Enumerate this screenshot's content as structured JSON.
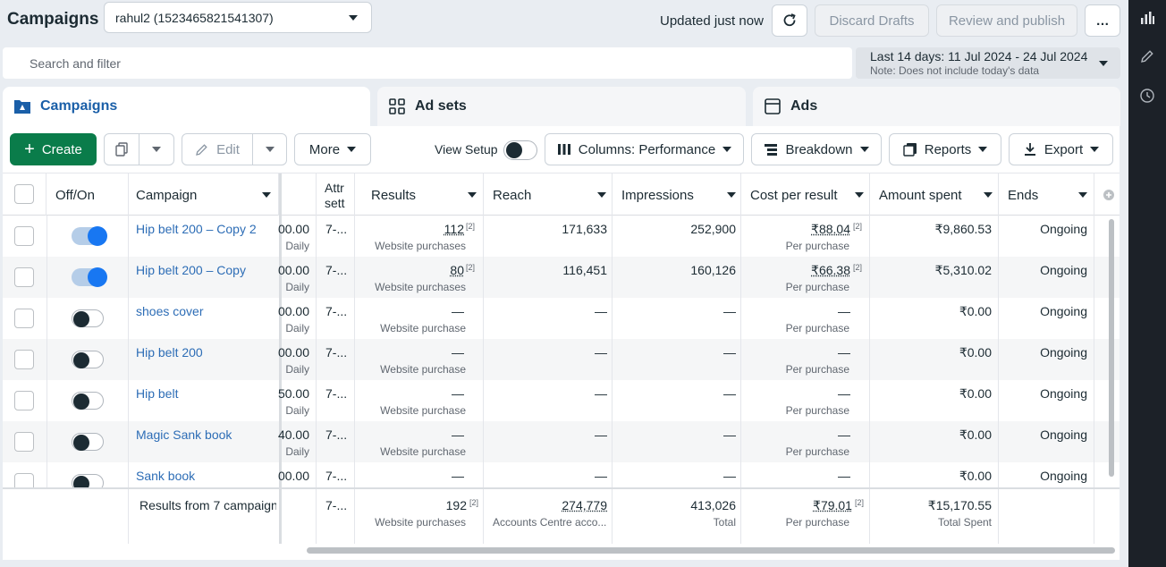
{
  "header": {
    "title": "Campaigns",
    "account": "rahul2 (1523465821541307)",
    "updated": "Updated just now",
    "discard": "Discard Drafts",
    "review": "Review and publish",
    "more_icon": "…"
  },
  "search": {
    "placeholder": "Search and filter"
  },
  "date": {
    "range": "Last 14 days: 11 Jul 2024 - 24 Jul 2024",
    "note": "Note: Does not include today's data"
  },
  "tabs": [
    {
      "label": "Campaigns"
    },
    {
      "label": "Ad sets"
    },
    {
      "label": "Ads"
    }
  ],
  "toolbar": {
    "create": "Create",
    "edit": "Edit",
    "more": "More",
    "view_setup": "View Setup",
    "columns": "Columns: Performance",
    "breakdown": "Breakdown",
    "reports": "Reports",
    "export": "Export"
  },
  "columns": {
    "offon": "Off/On",
    "campaign": "Campaign",
    "attr": "Attr",
    "attr2": "sett",
    "results": "Results",
    "reach": "Reach",
    "impressions": "Impressions",
    "cpr": "Cost per result",
    "spent": "Amount spent",
    "ends": "Ends"
  },
  "rows": [
    {
      "name": "Hip belt 200 – Copy 2",
      "on": true,
      "budget": "00.00",
      "budget_sub": "Daily",
      "attr": "7-...",
      "results": "112",
      "results_fn": "[2]",
      "results_sub": "Website purchases",
      "reach": "171,633",
      "impressions": "252,900",
      "cpr": "₹88.04",
      "cpr_fn": "[2]",
      "cpr_sub": "Per purchase",
      "spent": "₹9,860.53",
      "ends": "Ongoing"
    },
    {
      "name": "Hip belt 200 – Copy",
      "on": true,
      "budget": "00.00",
      "budget_sub": "Daily",
      "attr": "7-...",
      "results": "80",
      "results_fn": "[2]",
      "results_sub": "Website purchases",
      "reach": "116,451",
      "impressions": "160,126",
      "cpr": "₹66.38",
      "cpr_fn": "[2]",
      "cpr_sub": "Per purchase",
      "spent": "₹5,310.02",
      "ends": "Ongoing"
    },
    {
      "name": "shoes cover",
      "on": false,
      "budget": "00.00",
      "budget_sub": "Daily",
      "attr": "7-...",
      "results": "—",
      "results_fn": "",
      "results_sub": "Website purchase",
      "reach": "—",
      "impressions": "—",
      "cpr": "—",
      "cpr_fn": "",
      "cpr_sub": "Per purchase",
      "spent": "₹0.00",
      "ends": "Ongoing"
    },
    {
      "name": "Hip belt 200",
      "on": false,
      "budget": "00.00",
      "budget_sub": "Daily",
      "attr": "7-...",
      "results": "—",
      "results_fn": "",
      "results_sub": "Website purchase",
      "reach": "—",
      "impressions": "—",
      "cpr": "—",
      "cpr_fn": "",
      "cpr_sub": "Per purchase",
      "spent": "₹0.00",
      "ends": "Ongoing"
    },
    {
      "name": "Hip belt",
      "on": false,
      "budget": "50.00",
      "budget_sub": "Daily",
      "attr": "7-...",
      "results": "—",
      "results_fn": "",
      "results_sub": "Website purchase",
      "reach": "—",
      "impressions": "—",
      "cpr": "—",
      "cpr_fn": "",
      "cpr_sub": "Per purchase",
      "spent": "₹0.00",
      "ends": "Ongoing"
    },
    {
      "name": "Magic Sank book",
      "on": false,
      "budget": "40.00",
      "budget_sub": "Daily",
      "attr": "7-...",
      "results": "—",
      "results_fn": "",
      "results_sub": "Website purchase",
      "reach": "—",
      "impressions": "—",
      "cpr": "—",
      "cpr_fn": "",
      "cpr_sub": "Per purchase",
      "spent": "₹0.00",
      "ends": "Ongoing"
    },
    {
      "name": "Sank book",
      "on": false,
      "budget": "00.00",
      "budget_sub": "",
      "attr": "7-...",
      "results": "—",
      "results_fn": "",
      "results_sub": "",
      "reach": "—",
      "impressions": "—",
      "cpr": "—",
      "cpr_fn": "",
      "cpr_sub": "",
      "spent": "₹0.00",
      "ends": "Ongoing"
    }
  ],
  "totals": {
    "label": "Results from 7 campaign",
    "attr": "7-...",
    "results": "192",
    "results_fn": "[2]",
    "results_sub": "Website purchases",
    "reach": "274,779",
    "reach_sub": "Accounts Centre acco...",
    "impressions": "413,026",
    "impressions_sub": "Total",
    "cpr": "₹79.01",
    "cpr_fn": "[2]",
    "cpr_sub": "Per purchase",
    "spent": "₹15,170.55",
    "spent_sub": "Total Spent"
  },
  "colors": {
    "accent": "#0a7c4a",
    "link": "#2d6db6",
    "tab_active": "#1a5fa8",
    "toggle_on": "#1877f2"
  }
}
